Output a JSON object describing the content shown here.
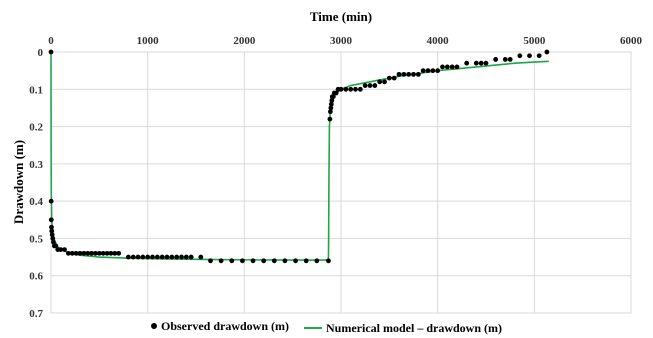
{
  "chart_data": {
    "type": "scatter",
    "xlabel": "Time (min)",
    "ylabel": "Drawdown (m)",
    "xlim": [
      0,
      6000
    ],
    "ylim": [
      0,
      0.7
    ],
    "y_inverted": true,
    "x_axis_position": "top",
    "grid": true,
    "legend_position": "bottom",
    "xticks": [
      0,
      1000,
      2000,
      3000,
      4000,
      5000,
      6000
    ],
    "yticks": [
      0,
      0.1,
      0.2,
      0.3,
      0.4,
      0.5,
      0.6,
      0.7
    ],
    "colors": {
      "observed": "#000000",
      "model": "#22a548",
      "grid": "#d9d9d9"
    },
    "series": [
      {
        "name": "Observed drawdown (m)",
        "kind": "scatter",
        "points": [
          [
            0,
            0
          ],
          [
            2,
            0.4
          ],
          [
            3,
            0.45
          ],
          [
            5,
            0.47
          ],
          [
            8,
            0.48
          ],
          [
            12,
            0.49
          ],
          [
            18,
            0.5
          ],
          [
            25,
            0.51
          ],
          [
            35,
            0.52
          ],
          [
            50,
            0.52
          ],
          [
            70,
            0.53
          ],
          [
            100,
            0.53
          ],
          [
            140,
            0.53
          ],
          [
            180,
            0.54
          ],
          [
            220,
            0.54
          ],
          [
            260,
            0.54
          ],
          [
            300,
            0.54
          ],
          [
            340,
            0.54
          ],
          [
            380,
            0.54
          ],
          [
            420,
            0.54
          ],
          [
            460,
            0.54
          ],
          [
            500,
            0.54
          ],
          [
            540,
            0.54
          ],
          [
            580,
            0.54
          ],
          [
            620,
            0.54
          ],
          [
            660,
            0.54
          ],
          [
            700,
            0.54
          ],
          [
            800,
            0.55
          ],
          [
            850,
            0.55
          ],
          [
            900,
            0.55
          ],
          [
            950,
            0.55
          ],
          [
            1000,
            0.55
          ],
          [
            1050,
            0.55
          ],
          [
            1100,
            0.55
          ],
          [
            1150,
            0.55
          ],
          [
            1200,
            0.55
          ],
          [
            1250,
            0.55
          ],
          [
            1300,
            0.55
          ],
          [
            1350,
            0.55
          ],
          [
            1400,
            0.55
          ],
          [
            1450,
            0.55
          ],
          [
            1550,
            0.55
          ],
          [
            1650,
            0.56
          ],
          [
            1760,
            0.56
          ],
          [
            1870,
            0.56
          ],
          [
            1980,
            0.56
          ],
          [
            2090,
            0.56
          ],
          [
            2200,
            0.56
          ],
          [
            2310,
            0.56
          ],
          [
            2420,
            0.56
          ],
          [
            2530,
            0.56
          ],
          [
            2640,
            0.56
          ],
          [
            2750,
            0.56
          ],
          [
            2870,
            0.56
          ],
          [
            2885,
            0.18
          ],
          [
            2890,
            0.16
          ],
          [
            2895,
            0.15
          ],
          [
            2900,
            0.14
          ],
          [
            2905,
            0.13
          ],
          [
            2910,
            0.12
          ],
          [
            2920,
            0.12
          ],
          [
            2930,
            0.11
          ],
          [
            2950,
            0.11
          ],
          [
            2970,
            0.1
          ],
          [
            3000,
            0.1
          ],
          [
            3050,
            0.1
          ],
          [
            3100,
            0.1
          ],
          [
            3150,
            0.1
          ],
          [
            3200,
            0.1
          ],
          [
            3250,
            0.09
          ],
          [
            3300,
            0.09
          ],
          [
            3350,
            0.09
          ],
          [
            3400,
            0.08
          ],
          [
            3450,
            0.08
          ],
          [
            3500,
            0.07
          ],
          [
            3550,
            0.07
          ],
          [
            3600,
            0.06
          ],
          [
            3650,
            0.06
          ],
          [
            3700,
            0.06
          ],
          [
            3750,
            0.06
          ],
          [
            3800,
            0.06
          ],
          [
            3850,
            0.05
          ],
          [
            3900,
            0.05
          ],
          [
            3950,
            0.05
          ],
          [
            4000,
            0.05
          ],
          [
            4050,
            0.04
          ],
          [
            4100,
            0.04
          ],
          [
            4150,
            0.04
          ],
          [
            4200,
            0.04
          ],
          [
            4300,
            0.03
          ],
          [
            4400,
            0.03
          ],
          [
            4450,
            0.03
          ],
          [
            4500,
            0.03
          ],
          [
            4600,
            0.02
          ],
          [
            4700,
            0.02
          ],
          [
            4750,
            0.02
          ],
          [
            4850,
            0.01
          ],
          [
            4950,
            0.01
          ],
          [
            5050,
            0.01
          ],
          [
            5130,
            0.0
          ]
        ]
      },
      {
        "name": "Numerical model – drawdown (m)",
        "kind": "line",
        "points": [
          [
            0,
            0
          ],
          [
            1,
            0.25
          ],
          [
            3,
            0.38
          ],
          [
            8,
            0.45
          ],
          [
            15,
            0.48
          ],
          [
            30,
            0.5
          ],
          [
            60,
            0.52
          ],
          [
            100,
            0.53
          ],
          [
            200,
            0.54
          ],
          [
            300,
            0.545
          ],
          [
            500,
            0.55
          ],
          [
            800,
            0.553
          ],
          [
            1200,
            0.555
          ],
          [
            1800,
            0.557
          ],
          [
            2400,
            0.558
          ],
          [
            2870,
            0.558
          ],
          [
            2872,
            0.5
          ],
          [
            2875,
            0.35
          ],
          [
            2880,
            0.2
          ],
          [
            2890,
            0.155
          ],
          [
            2900,
            0.135
          ],
          [
            2920,
            0.12
          ],
          [
            2950,
            0.11
          ],
          [
            3000,
            0.1
          ],
          [
            3100,
            0.09
          ],
          [
            3200,
            0.085
          ],
          [
            3400,
            0.075
          ],
          [
            3600,
            0.065
          ],
          [
            3800,
            0.058
          ],
          [
            4000,
            0.05
          ],
          [
            4200,
            0.045
          ],
          [
            4400,
            0.04
          ],
          [
            4600,
            0.035
          ],
          [
            4800,
            0.03
          ],
          [
            5000,
            0.027
          ],
          [
            5150,
            0.025
          ]
        ]
      }
    ]
  }
}
